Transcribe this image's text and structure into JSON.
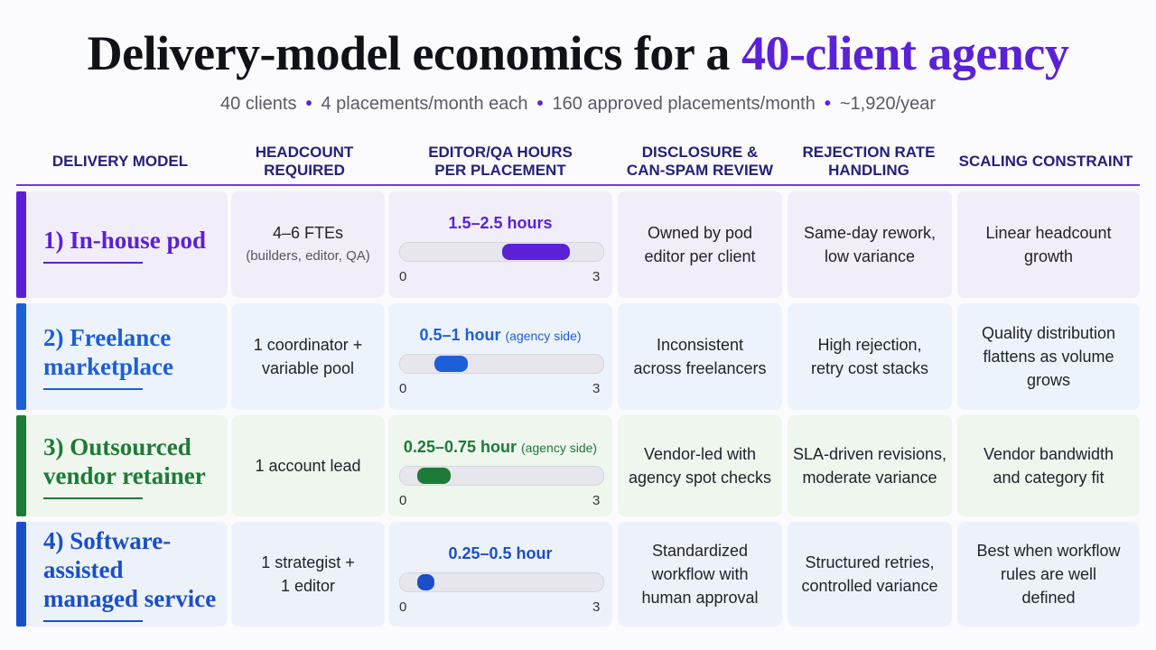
{
  "title": {
    "main": "Delivery-model economics for a ",
    "accent": "40-client agency"
  },
  "subtitle": [
    "40 clients",
    "4 placements/month each",
    "160 approved placements/month",
    "~1,920/year"
  ],
  "headers": {
    "model": "DELIVERY MODEL",
    "headcount_1": "HEADCOUNT",
    "headcount_2": "REQUIRED",
    "hours_1": "EDITOR/QA HOURS",
    "hours_2": "PER PLACEMENT",
    "disclosure_1": "DISCLOSURE &",
    "disclosure_2": "CAN-SPAM REVIEW",
    "rejection_1": "REJECTION RATE",
    "rejection_2": "HANDLING",
    "scaling": "SCALING CONSTRAINT"
  },
  "scale": {
    "min": 0,
    "max": 3,
    "min_label": "0",
    "max_label": "3"
  },
  "rows": [
    {
      "model": "1) In-house pod",
      "color": "#5b21d6",
      "bg": "#f1eef9",
      "headcount": "4–6 FTEs",
      "headcount_sub": "(builders, editor, QA)",
      "hours_label": "1.5–2.5 hours",
      "hours_note": "",
      "hours_low": 1.5,
      "hours_high": 2.5,
      "disclosure": "Owned by pod\neditor per client",
      "rejection": "Same-day rework,\nlow variance",
      "scaling": "Linear headcount\ngrowth"
    },
    {
      "model": "2) Freelance marketplace",
      "color": "#1d5fd6",
      "bg": "#edf3fc",
      "headcount": "1 coordinator +\nvariable pool",
      "headcount_sub": "",
      "hours_label": "0.5–1 hour",
      "hours_note": "(agency side)",
      "hours_low": 0.5,
      "hours_high": 1,
      "disclosure": "Inconsistent\nacross freelancers",
      "rejection": "High rejection,\nretry cost stacks",
      "scaling": "Quality distribution\nflattens as volume\ngrows"
    },
    {
      "model": "3) Outsourced vendor retainer",
      "color": "#1e7a36",
      "bg": "#eef6ee",
      "headcount": "1 account lead",
      "headcount_sub": "",
      "hours_label": "0.25–0.75 hour",
      "hours_note": "(agency side)",
      "hours_low": 0.25,
      "hours_high": 0.75,
      "disclosure": "Vendor-led with\nagency spot checks",
      "rejection": "SLA-driven revisions,\nmoderate variance",
      "scaling": "Vendor bandwidth\nand category fit"
    },
    {
      "model": "4) Software-assisted managed service",
      "color": "#1a4fc8",
      "bg": "#edf2fa",
      "headcount": "1 strategist +\n1 editor",
      "headcount_sub": "",
      "hours_label": "0.25–0.5 hour",
      "hours_note": "",
      "hours_low": 0.25,
      "hours_high": 0.5,
      "disclosure": "Standardized\nworkflow with\nhuman approval",
      "rejection": "Structured retries,\ncontrolled variance",
      "scaling": "Best when workflow\nrules are well\ndefined"
    }
  ]
}
